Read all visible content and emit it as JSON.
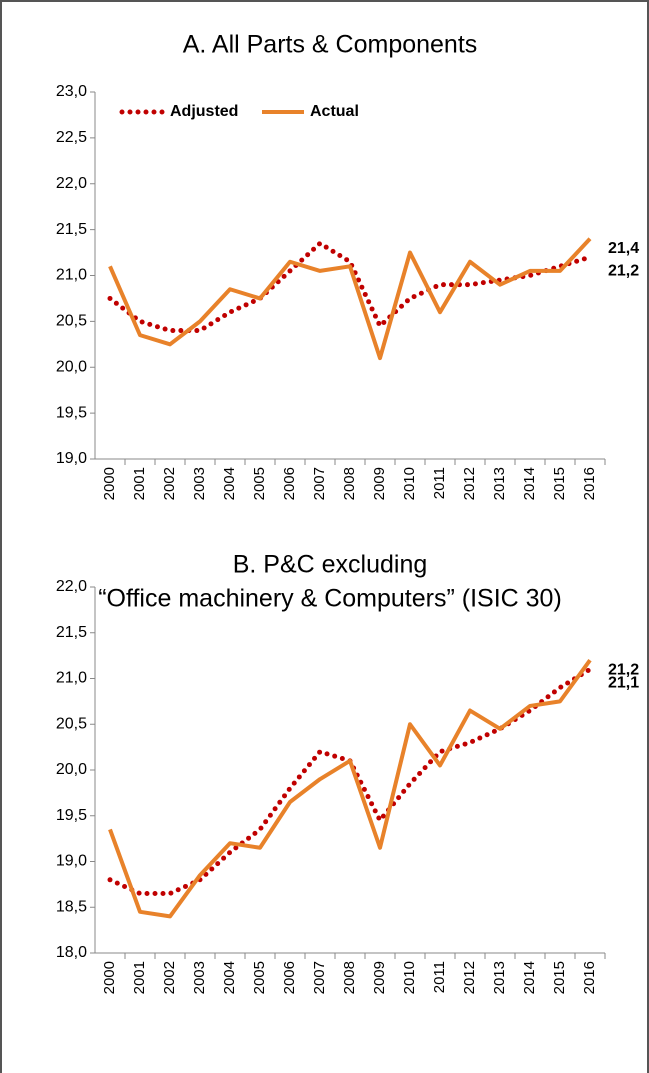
{
  "chart_data": [
    {
      "type": "line",
      "title": "A. All Parts & Components",
      "categories": [
        "2000",
        "2001",
        "2002",
        "2003",
        "2004",
        "2005",
        "2006",
        "2007",
        "2008",
        "2009",
        "2010",
        "2011",
        "2012",
        "2013",
        "2014",
        "2015",
        "2016"
      ],
      "series": [
        {
          "name": "Adjusted",
          "color": "#c00000",
          "style": "dotted",
          "values": [
            20.75,
            20.5,
            20.4,
            20.4,
            20.6,
            20.75,
            21.05,
            21.35,
            21.15,
            20.45,
            20.75,
            20.9,
            20.9,
            20.95,
            21.0,
            21.1,
            21.2
          ],
          "value_labels": [
            null,
            null,
            null,
            null,
            null,
            null,
            null,
            null,
            null,
            null,
            null,
            null,
            null,
            null,
            null,
            null,
            "21,2"
          ]
        },
        {
          "name": "Actual",
          "color": "#e8822a",
          "style": "solid",
          "values": [
            21.1,
            20.35,
            20.25,
            20.5,
            20.85,
            20.75,
            21.15,
            21.05,
            21.1,
            20.1,
            21.25,
            20.6,
            21.15,
            20.9,
            21.05,
            21.05,
            21.4
          ],
          "value_labels": [
            null,
            null,
            null,
            null,
            null,
            null,
            null,
            null,
            null,
            null,
            null,
            null,
            null,
            null,
            null,
            null,
            "21,4"
          ]
        }
      ],
      "ylim": [
        19.0,
        23.0
      ],
      "yticks": [
        {
          "value": 19.0,
          "label": "19,0"
        },
        {
          "value": 19.5,
          "label": "19,5"
        },
        {
          "value": 20.0,
          "label": "20,0"
        },
        {
          "value": 20.5,
          "label": "20,5"
        },
        {
          "value": 21.0,
          "label": "21,0"
        },
        {
          "value": 21.5,
          "label": "21,5"
        },
        {
          "value": 22.0,
          "label": "22,0"
        },
        {
          "value": 22.5,
          "label": "22,5"
        },
        {
          "value": 23.0,
          "label": "23,0"
        }
      ],
      "legend": true,
      "grid": false
    },
    {
      "type": "line",
      "title": [
        "B. P&C excluding",
        "“Office machinery & Computers” (ISIC 30)"
      ],
      "categories": [
        "2000",
        "2001",
        "2002",
        "2003",
        "2004",
        "2005",
        "2006",
        "2007",
        "2008",
        "2009",
        "2010",
        "2011",
        "2012",
        "2013",
        "2014",
        "2015",
        "2016"
      ],
      "series": [
        {
          "color": "#c00000",
          "style": "dotted",
          "values": [
            18.8,
            18.65,
            18.65,
            18.8,
            19.1,
            19.35,
            19.8,
            20.2,
            20.1,
            19.45,
            19.85,
            20.2,
            20.3,
            20.45,
            20.65,
            20.9,
            21.1
          ],
          "value_labels": [
            null,
            null,
            null,
            null,
            null,
            null,
            null,
            null,
            null,
            null,
            null,
            null,
            null,
            null,
            null,
            null,
            "21,1"
          ]
        },
        {
          "color": "#e8822a",
          "style": "solid",
          "values": [
            19.35,
            18.45,
            18.4,
            18.85,
            19.2,
            19.15,
            19.65,
            19.9,
            20.1,
            19.15,
            20.5,
            20.05,
            20.65,
            20.45,
            20.7,
            20.75,
            21.2
          ],
          "value_labels": [
            null,
            null,
            null,
            null,
            null,
            null,
            null,
            null,
            null,
            null,
            null,
            null,
            null,
            null,
            null,
            null,
            "21,2"
          ]
        }
      ],
      "ylim": [
        18.0,
        22.0
      ],
      "yticks": [
        {
          "value": 18.0,
          "label": "18,0"
        },
        {
          "value": 18.5,
          "label": "18,5"
        },
        {
          "value": 19.0,
          "label": "19,0"
        },
        {
          "value": 19.5,
          "label": "19,5"
        },
        {
          "value": 20.0,
          "label": "20,0"
        },
        {
          "value": 20.5,
          "label": "20,5"
        },
        {
          "value": 21.0,
          "label": "21,0"
        },
        {
          "value": 21.5,
          "label": "21,5"
        },
        {
          "value": 22.0,
          "label": "22,0"
        }
      ],
      "legend": false,
      "grid": false
    }
  ]
}
